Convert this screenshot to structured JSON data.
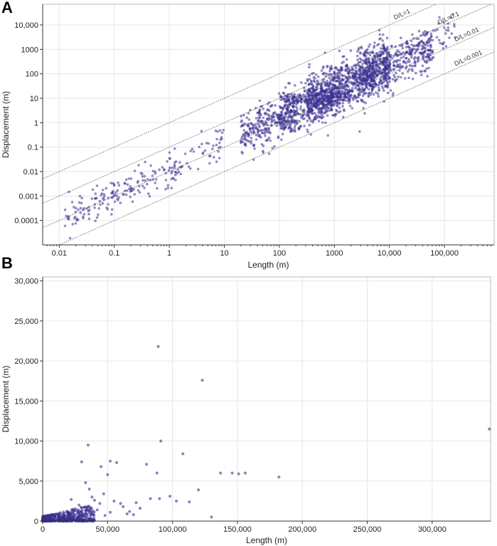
{
  "chart_data": [
    {
      "panel": "A",
      "type": "scatter",
      "xscale": "log",
      "yscale": "log",
      "xlabel": "Length (m)",
      "ylabel": "Displacement (m)",
      "xlim": [
        0.005,
        800000
      ],
      "ylim": [
        1e-05,
        70000
      ],
      "xticks": [
        {
          "v": 0.01,
          "label": "0.01"
        },
        {
          "v": 0.1,
          "label": "0.1"
        },
        {
          "v": 1,
          "label": "1"
        },
        {
          "v": 10,
          "label": "10"
        },
        {
          "v": 100,
          "label": "100"
        },
        {
          "v": 1000,
          "label": "1000"
        },
        {
          "v": 10000,
          "label": "10,000"
        },
        {
          "v": 100000,
          "label": "100,000"
        }
      ],
      "yticks": [
        {
          "v": 0.0001,
          "label": "0.0001"
        },
        {
          "v": 0.001,
          "label": "0.001"
        },
        {
          "v": 0.01,
          "label": "0.01"
        },
        {
          "v": 0.1,
          "label": "0.1"
        },
        {
          "v": 1,
          "label": "1"
        },
        {
          "v": 10,
          "label": "10"
        },
        {
          "v": 100,
          "label": "100"
        },
        {
          "v": 1000,
          "label": "1000"
        },
        {
          "v": 10000,
          "label": "10,000"
        }
      ],
      "grid": true,
      "reference_lines": [
        {
          "ratio": 1,
          "label": "D/L=1"
        },
        {
          "ratio": 0.1,
          "label": "D/L=0.1"
        },
        {
          "ratio": 0.01,
          "label": "D/L=0.01"
        },
        {
          "ratio": 0.001,
          "label": "D/L=0.001"
        }
      ],
      "clusters": [
        {
          "logx": [
            -1.9,
            0.2
          ],
          "slope": 1,
          "intercept": -2.0,
          "spread": 0.35,
          "n": 170
        },
        {
          "logx": [
            0.0,
            1.0
          ],
          "slope": 1,
          "intercept": -1.8,
          "spread": 0.45,
          "n": 50
        },
        {
          "logx": [
            1.3,
            2.3
          ],
          "slope": 1,
          "intercept": -1.8,
          "spread": 0.45,
          "n": 280
        },
        {
          "logx": [
            2.0,
            3.0
          ],
          "slope": 1,
          "intercept": -1.9,
          "spread": 0.45,
          "n": 300
        },
        {
          "logx": [
            2.0,
            3.3
          ],
          "slope": 0,
          "intercept": 1.0,
          "spread": 0.12,
          "n": 140
        },
        {
          "logx": [
            2.5,
            4.0
          ],
          "slope": 1,
          "intercept": -1.6,
          "spread": 0.5,
          "n": 900
        },
        {
          "logx": [
            3.5,
            4.8
          ],
          "slope": 1,
          "intercept": -1.7,
          "spread": 0.45,
          "n": 350
        },
        {
          "logx": [
            4.3,
            5.2
          ],
          "slope": 1,
          "intercept": -1.4,
          "spread": 0.35,
          "n": 60
        }
      ]
    },
    {
      "panel": "B",
      "type": "scatter",
      "xscale": "linear",
      "yscale": "linear",
      "xlabel": "Length (m)",
      "ylabel": "Displacement (m)",
      "xlim": [
        0,
        345000
      ],
      "ylim": [
        0,
        30500
      ],
      "xticks": [
        {
          "v": 0,
          "label": "0"
        },
        {
          "v": 50000,
          "label": "50,000"
        },
        {
          "v": 100000,
          "label": "100,000"
        },
        {
          "v": 150000,
          "label": "150,000"
        },
        {
          "v": 200000,
          "label": "200,000"
        },
        {
          "v": 250000,
          "label": "250,000"
        },
        {
          "v": 300000,
          "label": "300,000"
        }
      ],
      "yticks": [
        {
          "v": 0,
          "label": "0"
        },
        {
          "v": 5000,
          "label": "5,000"
        },
        {
          "v": 10000,
          "label": "10,000"
        },
        {
          "v": 15000,
          "label": "15,000"
        },
        {
          "v": 20000,
          "label": "20,000"
        },
        {
          "v": 25000,
          "label": "25,000"
        },
        {
          "v": 30000,
          "label": "30,000"
        }
      ],
      "grid": true,
      "x": [
        89000,
        123000,
        91000,
        108000,
        344000,
        35000,
        30000,
        52000,
        57000,
        45000,
        50000,
        80000,
        88000,
        137000,
        146000,
        151000,
        156000,
        182000,
        120000,
        90000,
        98000,
        103000,
        113000,
        72000,
        83000,
        60000,
        44000,
        40000,
        38000,
        36000,
        33000,
        47000,
        55000,
        62000,
        67000,
        70000,
        42000,
        28000,
        25000,
        22000,
        130000,
        75000,
        65000,
        52000,
        48000
      ],
      "y": [
        21800,
        17600,
        10000,
        8400,
        11500,
        9500,
        7400,
        7500,
        7300,
        6800,
        5800,
        7100,
        6000,
        6000,
        6000,
        5900,
        6000,
        5500,
        3900,
        2800,
        3100,
        2500,
        2400,
        2300,
        2800,
        2200,
        2200,
        2600,
        3000,
        4000,
        4800,
        3400,
        2500,
        1800,
        1200,
        800,
        1400,
        2000,
        1300,
        2700,
        500,
        1600,
        900,
        1100,
        700
      ],
      "dense_cluster": {
        "xmax": 40000,
        "ymax": 1500,
        "n": 500
      }
    }
  ],
  "panels": {
    "a_label": "A",
    "b_label": "B"
  },
  "colors": {
    "point": "#3b2f8f",
    "grid": "#e6e6e6",
    "axis": "#333333",
    "refline": "#555555"
  }
}
